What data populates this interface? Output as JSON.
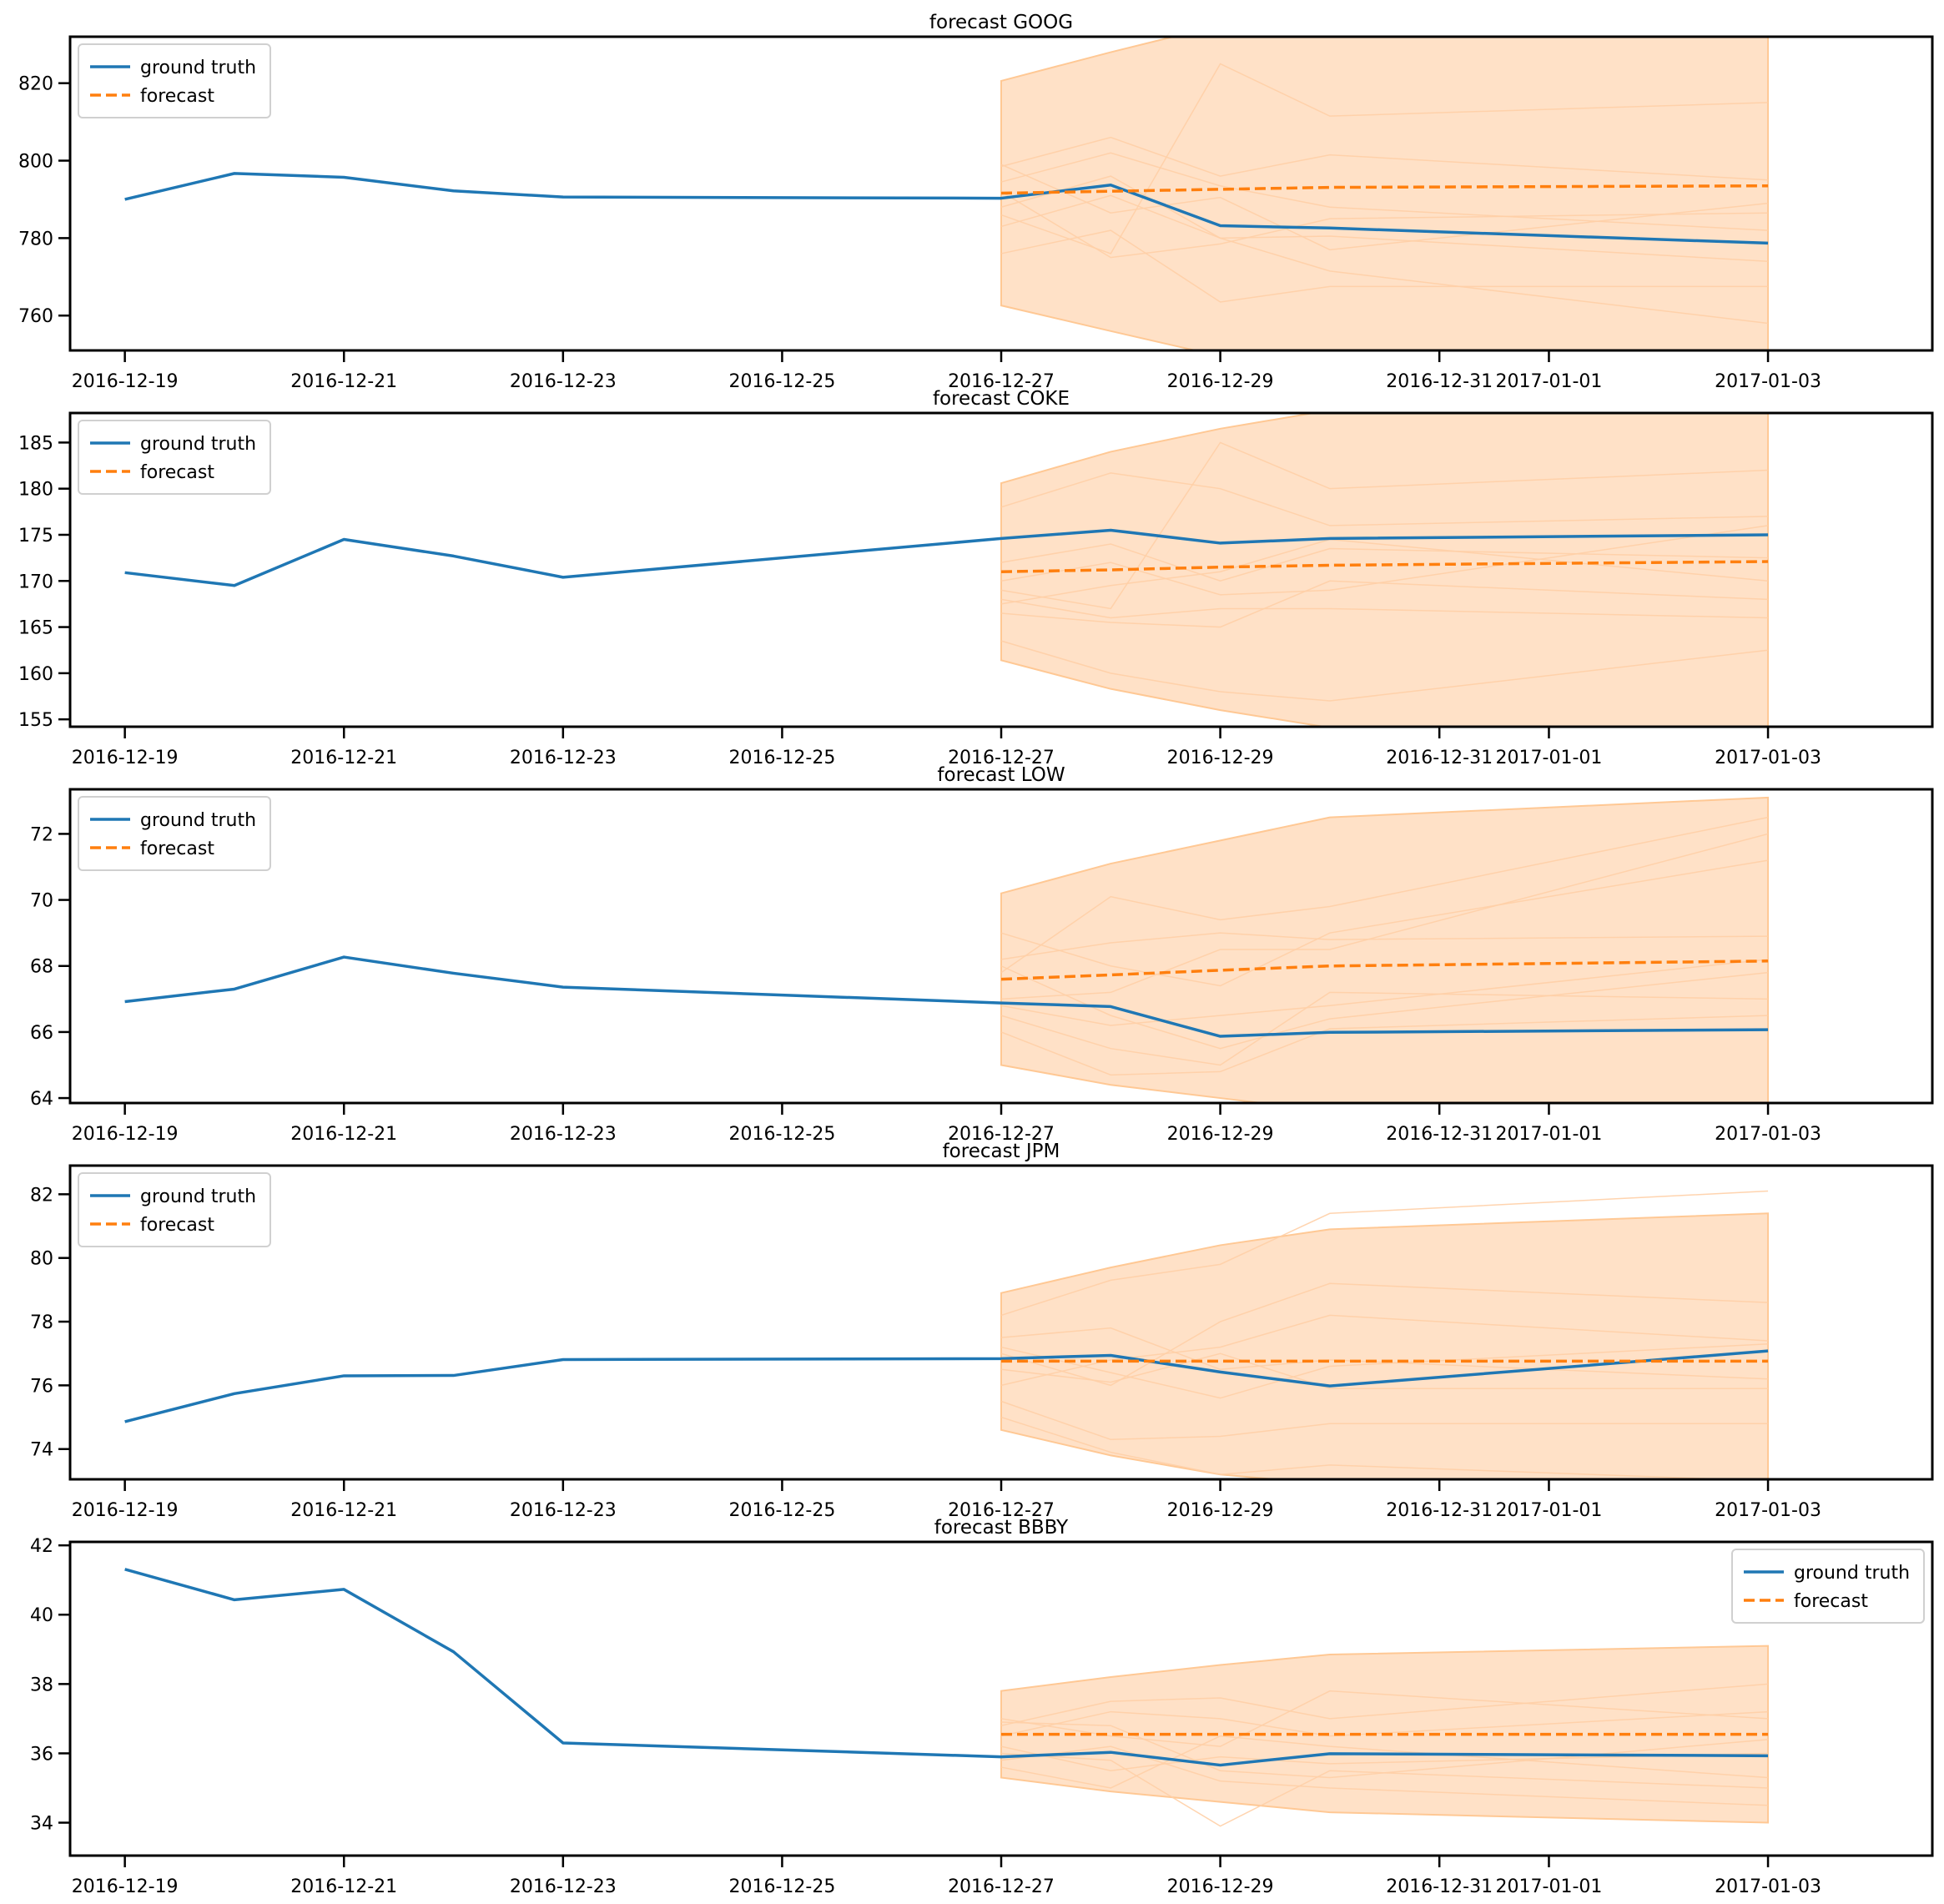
{
  "colors": {
    "ground_truth": "#1f77b4",
    "forecast": "#ff7f0e",
    "band": "#ffdcbd",
    "sample": "#ffcfa6"
  },
  "chart_data": [
    {
      "type": "line",
      "title": "forecast GOOG",
      "xlim": [
        "2016-12-18T12",
        "2017-01-04T12"
      ],
      "ylim": [
        751,
        832
      ],
      "yticks": [
        760,
        780,
        800,
        820
      ],
      "xticks": [
        "2016-12-19",
        "2016-12-21",
        "2016-12-23",
        "2016-12-25",
        "2016-12-27",
        "2016-12-29",
        "2016-12-31",
        "2017-01-01",
        "2017-01-03"
      ],
      "legend": {
        "position": "top-left",
        "entries": [
          "ground truth",
          "forecast"
        ]
      },
      "ground_truth": {
        "name": "ground truth",
        "x": [
          "2016-12-19",
          "2016-12-20",
          "2016-12-21",
          "2016-12-22",
          "2016-12-23",
          "2016-12-27",
          "2016-12-28",
          "2016-12-29",
          "2016-12-30",
          "2017-01-03"
        ],
        "y": [
          790.0,
          796.7,
          795.7,
          792.2,
          790.6,
          790.3,
          793.7,
          783.2,
          782.6,
          778.7
        ]
      },
      "forecast": {
        "name": "forecast",
        "x": [
          "2016-12-27",
          "2016-12-28",
          "2016-12-29",
          "2016-12-30",
          "2017-01-03"
        ],
        "y": [
          791.6,
          792.1,
          792.6,
          793.1,
          793.5
        ]
      },
      "band": {
        "x": [
          "2016-12-27",
          "2016-12-28",
          "2016-12-29",
          "2016-12-30",
          "2017-01-03"
        ],
        "lower": [
          762.6,
          756.0,
          749.5,
          745.0,
          742.0
        ],
        "upper": [
          820.6,
          828.0,
          835.0,
          840.0,
          845.0
        ]
      },
      "samples": {
        "x": [
          "2016-12-27",
          "2016-12-28",
          "2016-12-29",
          "2016-12-30",
          "2017-01-03"
        ],
        "y": [
          [
            798.5,
            806.0,
            796.0,
            801.5,
            795.0
          ],
          [
            794.5,
            802.0,
            793.5,
            788.0,
            782.0
          ],
          [
            786.0,
            776.0,
            825.0,
            811.5,
            815.0
          ],
          [
            792.0,
            775.0,
            778.5,
            785.0,
            786.5
          ],
          [
            788.0,
            796.0,
            780.0,
            771.5,
            758.0
          ],
          [
            776.0,
            782.0,
            763.5,
            767.5,
            767.5
          ],
          [
            799.0,
            786.5,
            790.5,
            777.0,
            789.0
          ],
          [
            783.0,
            791.0,
            780.0,
            780.5,
            774.0
          ]
        ]
      }
    },
    {
      "type": "line",
      "title": "forecast COKE",
      "xlim": [
        "2016-12-18T12",
        "2017-01-04T12"
      ],
      "ylim": [
        154.2,
        188.2
      ],
      "yticks": [
        155,
        160,
        165,
        170,
        175,
        180,
        185
      ],
      "xticks": [
        "2016-12-19",
        "2016-12-21",
        "2016-12-23",
        "2016-12-25",
        "2016-12-27",
        "2016-12-29",
        "2016-12-31",
        "2017-01-01",
        "2017-01-03"
      ],
      "legend": {
        "position": "top-left",
        "entries": [
          "ground truth",
          "forecast"
        ]
      },
      "ground_truth": {
        "name": "ground truth",
        "x": [
          "2016-12-19",
          "2016-12-20",
          "2016-12-21",
          "2016-12-22",
          "2016-12-23",
          "2016-12-27",
          "2016-12-28",
          "2016-12-29",
          "2016-12-30",
          "2017-01-03"
        ],
        "y": [
          170.9,
          169.5,
          174.5,
          172.7,
          170.4,
          174.6,
          175.5,
          174.1,
          174.6,
          175.0
        ]
      },
      "forecast": {
        "name": "forecast",
        "x": [
          "2016-12-27",
          "2016-12-28",
          "2016-12-29",
          "2016-12-30",
          "2017-01-03"
        ],
        "y": [
          171.0,
          171.2,
          171.5,
          171.7,
          172.1
        ]
      },
      "band": {
        "x": [
          "2016-12-27",
          "2016-12-28",
          "2016-12-29",
          "2016-12-30",
          "2017-01-03"
        ],
        "lower": [
          161.4,
          158.3,
          156.0,
          154.1,
          153.0
        ],
        "upper": [
          180.6,
          184.0,
          186.5,
          188.5,
          190.0
        ]
      },
      "samples": {
        "x": [
          "2016-12-27",
          "2016-12-28",
          "2016-12-29",
          "2016-12-30",
          "2017-01-03"
        ],
        "y": [
          [
            178.0,
            181.7,
            180.0,
            176.0,
            177.0
          ],
          [
            169.0,
            167.0,
            185.0,
            180.0,
            182.0
          ],
          [
            166.5,
            165.5,
            165.0,
            170.0,
            168.0
          ],
          [
            172.0,
            174.0,
            170.0,
            173.5,
            172.5
          ],
          [
            168.0,
            166.0,
            167.0,
            167.0,
            166.0
          ],
          [
            163.5,
            160.0,
            158.0,
            157.0,
            162.5
          ],
          [
            170.0,
            172.0,
            168.5,
            169.0,
            176.0
          ],
          [
            167.5,
            169.5,
            171.0,
            174.5,
            170.0
          ]
        ]
      }
    },
    {
      "type": "line",
      "title": "forecast LOW",
      "xlim": [
        "2016-12-18T12",
        "2017-01-04T12"
      ],
      "ylim": [
        63.85,
        73.35
      ],
      "yticks": [
        64,
        66,
        68,
        70,
        72
      ],
      "xticks": [
        "2016-12-19",
        "2016-12-21",
        "2016-12-23",
        "2016-12-25",
        "2016-12-27",
        "2016-12-29",
        "2016-12-31",
        "2017-01-01",
        "2017-01-03"
      ],
      "legend": {
        "position": "top-left",
        "entries": [
          "ground truth",
          "forecast"
        ]
      },
      "ground_truth": {
        "name": "ground truth",
        "x": [
          "2016-12-19",
          "2016-12-20",
          "2016-12-21",
          "2016-12-22",
          "2016-12-23",
          "2016-12-27",
          "2016-12-28",
          "2016-12-29",
          "2016-12-30",
          "2017-01-03"
        ],
        "y": [
          66.92,
          67.3,
          68.27,
          67.78,
          67.36,
          66.88,
          66.77,
          65.87,
          65.99,
          66.07
        ]
      },
      "forecast": {
        "name": "forecast",
        "x": [
          "2016-12-27",
          "2016-12-28",
          "2016-12-29",
          "2016-12-30",
          "2017-01-03"
        ],
        "y": [
          67.6,
          67.73,
          67.87,
          68.0,
          68.15
        ]
      },
      "band": {
        "x": [
          "2016-12-27",
          "2016-12-28",
          "2016-12-29",
          "2016-12-30",
          "2017-01-03"
        ],
        "lower": [
          65.0,
          64.4,
          64.0,
          63.6,
          63.3
        ],
        "upper": [
          70.2,
          71.1,
          71.8,
          72.5,
          73.1
        ]
      },
      "samples": {
        "x": [
          "2016-12-27",
          "2016-12-28",
          "2016-12-29",
          "2016-12-30",
          "2017-01-03"
        ],
        "y": [
          [
            67.8,
            70.1,
            69.4,
            69.8,
            72.5
          ],
          [
            68.2,
            68.7,
            69.0,
            68.8,
            68.9
          ],
          [
            66.5,
            65.5,
            65.0,
            67.2,
            67.0
          ],
          [
            67.0,
            67.2,
            68.5,
            68.5,
            72.0
          ],
          [
            66.0,
            64.7,
            64.8,
            66.1,
            66.5
          ],
          [
            69.0,
            68.0,
            67.4,
            69.0,
            71.2
          ],
          [
            66.8,
            66.2,
            66.5,
            66.8,
            68.2
          ],
          [
            68.0,
            66.5,
            65.5,
            66.4,
            67.8
          ]
        ]
      }
    },
    {
      "type": "line",
      "title": "forecast JPM",
      "xlim": [
        "2016-12-18T12",
        "2017-01-04T12"
      ],
      "ylim": [
        73.05,
        82.9
      ],
      "yticks": [
        74,
        76,
        78,
        80,
        82
      ],
      "xticks": [
        "2016-12-19",
        "2016-12-21",
        "2016-12-23",
        "2016-12-25",
        "2016-12-27",
        "2016-12-29",
        "2016-12-31",
        "2017-01-01",
        "2017-01-03"
      ],
      "legend": {
        "position": "top-left",
        "entries": [
          "ground truth",
          "forecast"
        ]
      },
      "ground_truth": {
        "name": "ground truth",
        "x": [
          "2016-12-19",
          "2016-12-20",
          "2016-12-21",
          "2016-12-22",
          "2016-12-23",
          "2016-12-27",
          "2016-12-28",
          "2016-12-29",
          "2016-12-30",
          "2017-01-03"
        ],
        "y": [
          74.86,
          75.74,
          76.3,
          76.31,
          76.81,
          76.84,
          76.94,
          76.42,
          75.98,
          77.08
        ]
      },
      "forecast": {
        "name": "forecast",
        "x": [
          "2016-12-27",
          "2016-12-28",
          "2016-12-29",
          "2016-12-30",
          "2017-01-03"
        ],
        "y": [
          76.76,
          76.76,
          76.76,
          76.76,
          76.76
        ]
      },
      "band": {
        "x": [
          "2016-12-27",
          "2016-12-28",
          "2016-12-29",
          "2016-12-30",
          "2017-01-03"
        ],
        "lower": [
          74.6,
          73.8,
          73.2,
          72.9,
          72.6
        ],
        "upper": [
          78.9,
          79.7,
          80.4,
          80.9,
          81.4
        ]
      },
      "samples": {
        "x": [
          "2016-12-27",
          "2016-12-28",
          "2016-12-29",
          "2016-12-30",
          "2017-01-03"
        ],
        "y": [
          [
            78.2,
            79.3,
            79.8,
            81.4,
            82.1
          ],
          [
            77.0,
            76.0,
            78.0,
            79.2,
            78.6
          ],
          [
            76.0,
            76.8,
            77.2,
            78.2,
            77.4
          ],
          [
            75.5,
            74.3,
            74.4,
            74.8,
            74.8
          ],
          [
            77.5,
            77.8,
            76.5,
            76.8,
            76.2
          ],
          [
            76.5,
            76.1,
            77.0,
            75.9,
            75.9
          ],
          [
            75.0,
            73.9,
            73.2,
            73.5,
            73.0
          ],
          [
            77.2,
            76.4,
            75.6,
            76.6,
            77.3
          ]
        ]
      }
    },
    {
      "type": "line",
      "title": "forecast BBBY",
      "xlim": [
        "2016-12-18T12",
        "2017-01-04T12"
      ],
      "ylim": [
        33.05,
        42.1
      ],
      "yticks": [
        34,
        36,
        38,
        40,
        42
      ],
      "xticks": [
        "2016-12-19",
        "2016-12-21",
        "2016-12-23",
        "2016-12-25",
        "2016-12-27",
        "2016-12-29",
        "2016-12-31",
        "2017-01-01",
        "2017-01-03"
      ],
      "legend": {
        "position": "top-right",
        "entries": [
          "ground truth",
          "forecast"
        ]
      },
      "ground_truth": {
        "name": "ground truth",
        "x": [
          "2016-12-19",
          "2016-12-20",
          "2016-12-21",
          "2016-12-22",
          "2016-12-23",
          "2016-12-27",
          "2016-12-28",
          "2016-12-29",
          "2016-12-30",
          "2017-01-03"
        ],
        "y": [
          41.31,
          40.43,
          40.73,
          38.93,
          36.3,
          35.9,
          36.03,
          35.66,
          35.99,
          35.93
        ]
      },
      "forecast": {
        "name": "forecast",
        "x": [
          "2016-12-27",
          "2016-12-28",
          "2016-12-29",
          "2016-12-30",
          "2017-01-03"
        ],
        "y": [
          36.55,
          36.55,
          36.55,
          36.55,
          36.55
        ]
      },
      "band": {
        "x": [
          "2016-12-27",
          "2016-12-28",
          "2016-12-29",
          "2016-12-30",
          "2017-01-03"
        ],
        "lower": [
          35.3,
          34.9,
          34.6,
          34.3,
          34.0
        ],
        "upper": [
          37.8,
          38.2,
          38.55,
          38.85,
          39.1
        ]
      },
      "samples": {
        "x": [
          "2016-12-27",
          "2016-12-28",
          "2016-12-29",
          "2016-12-30",
          "2017-01-03"
        ],
        "y": [
          [
            36.8,
            37.5,
            37.6,
            37.0,
            38.0
          ],
          [
            36.0,
            35.8,
            33.9,
            35.5,
            35.0
          ],
          [
            37.0,
            36.5,
            36.2,
            37.8,
            37.0
          ],
          [
            35.8,
            36.2,
            35.2,
            35.0,
            34.5
          ],
          [
            36.5,
            37.2,
            37.0,
            36.5,
            37.2
          ],
          [
            36.2,
            35.5,
            35.9,
            35.7,
            36.0
          ],
          [
            35.6,
            35.0,
            36.5,
            36.2,
            35.3
          ],
          [
            36.9,
            36.8,
            35.5,
            35.3,
            36.4
          ]
        ]
      }
    }
  ]
}
